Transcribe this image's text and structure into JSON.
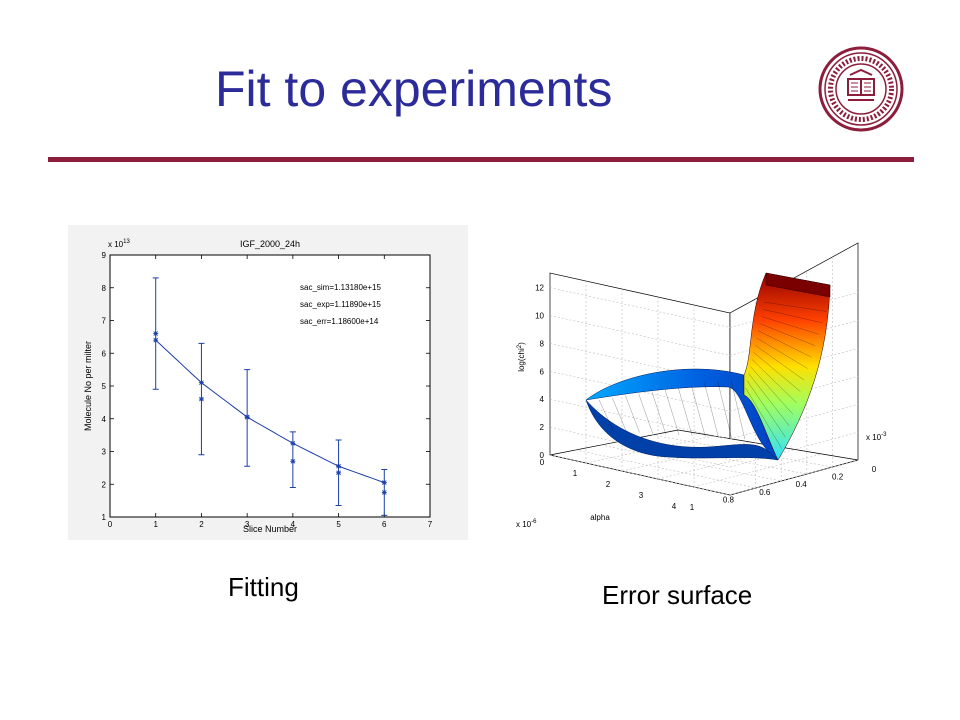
{
  "slide": {
    "title": "Fit to experiments",
    "accent_color": "#8c1e3c",
    "title_color": "#2b2b9a",
    "logo": {
      "icon": "indiana-university-seal-icon",
      "text": "INDIANA UNIVERSITY SIGILLUM MDCCCXX"
    }
  },
  "captions": {
    "left": "Fitting",
    "right": "Error surface"
  },
  "chart_data": [
    {
      "type": "line",
      "title": "IGF_2000_24h",
      "xlabel": "Slice Number",
      "ylabel": "Molecule No per milter",
      "y_multiplier": "x 10",
      "y_exponent": "13",
      "xlim": [
        0,
        7
      ],
      "ylim": [
        1,
        9
      ],
      "xticks": [
        "0",
        "1",
        "2",
        "3",
        "4",
        "5",
        "6",
        "7"
      ],
      "yticks": [
        "1",
        "2",
        "3",
        "4",
        "5",
        "6",
        "7",
        "8",
        "9"
      ],
      "annotations": [
        "sac_sim=1.13180e+15",
        "sac_exp=1.11890e+15",
        "sac_err=1.18600e+14"
      ],
      "series": [
        {
          "role": "simulated fit line",
          "x": [
            1,
            2,
            3,
            4,
            5,
            6
          ],
          "y": [
            6.4,
            5.1,
            4.05,
            3.25,
            2.55,
            2.05
          ]
        },
        {
          "role": "experiment with error bars",
          "x": [
            1,
            2,
            3,
            4,
            5,
            6
          ],
          "y": [
            6.6,
            4.6,
            4.05,
            2.7,
            2.35,
            1.75
          ],
          "err_low": [
            4.9,
            2.9,
            2.55,
            1.9,
            1.35,
            1.05
          ],
          "err_high": [
            8.3,
            6.3,
            5.5,
            3.6,
            3.35,
            2.45
          ]
        }
      ],
      "grid": false,
      "line_color": "#1c3fa8"
    },
    {
      "type": "surface",
      "zlabel": "log(chi²)",
      "zlabel_main": "log(chi",
      "zlabel_sup": "2",
      "zlabel_end": ")",
      "zticks": [
        "0",
        "2",
        "4",
        "6",
        "8",
        "10",
        "12"
      ],
      "alpha_axis_label": "alpha",
      "alpha_ticks": [
        "1",
        "0.8",
        "0.6",
        "0.4",
        "0.2",
        "0"
      ],
      "other_axis_ticks": [
        "0",
        "1",
        "2",
        "3",
        "4"
      ],
      "other_axis_multiplier": "x 10",
      "other_axis_exponent": "-6",
      "alpha_multiplier": "x 10",
      "alpha_exponent": "-3",
      "colormap": "jet",
      "grid": true
    }
  ]
}
